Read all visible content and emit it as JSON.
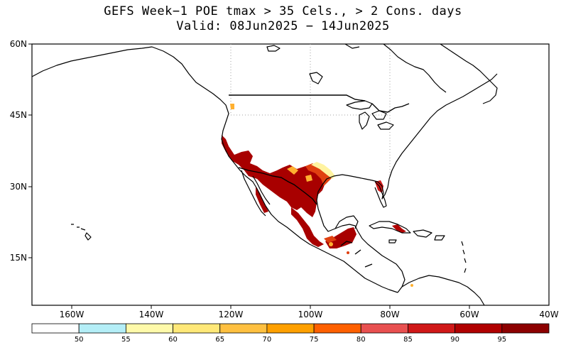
{
  "title_line1": "GEFS Week−1 POE tmax > 35 Cels., > 2 Cons. days",
  "title_line2": "Valid: 08Jun2025 − 14Jun2025",
  "lat_labels": [
    "60N",
    "45N",
    "30N",
    "15N"
  ],
  "lon_labels": [
    "160W",
    "140W",
    "120W",
    "100W",
    "80W",
    "60W",
    "40W"
  ],
  "colorbar": {
    "colors": [
      "#ffffff",
      "#b4eef7",
      "#fffaaa",
      "#ffe878",
      "#ffc040",
      "#ffa000",
      "#ff6000",
      "#e85050",
      "#d01818",
      "#b00000",
      "#8c0000"
    ],
    "labels": [
      "50",
      "55",
      "60",
      "65",
      "70",
      "75",
      "80",
      "85",
      "90",
      "95"
    ]
  },
  "map_colors": {
    "coast": "#000000",
    "grid": "#a0a0a0",
    "high_prob": "#a80000",
    "mid_prob": "#e04010",
    "low_prob": "#ffb030",
    "fringe": "#fff3a0"
  }
}
